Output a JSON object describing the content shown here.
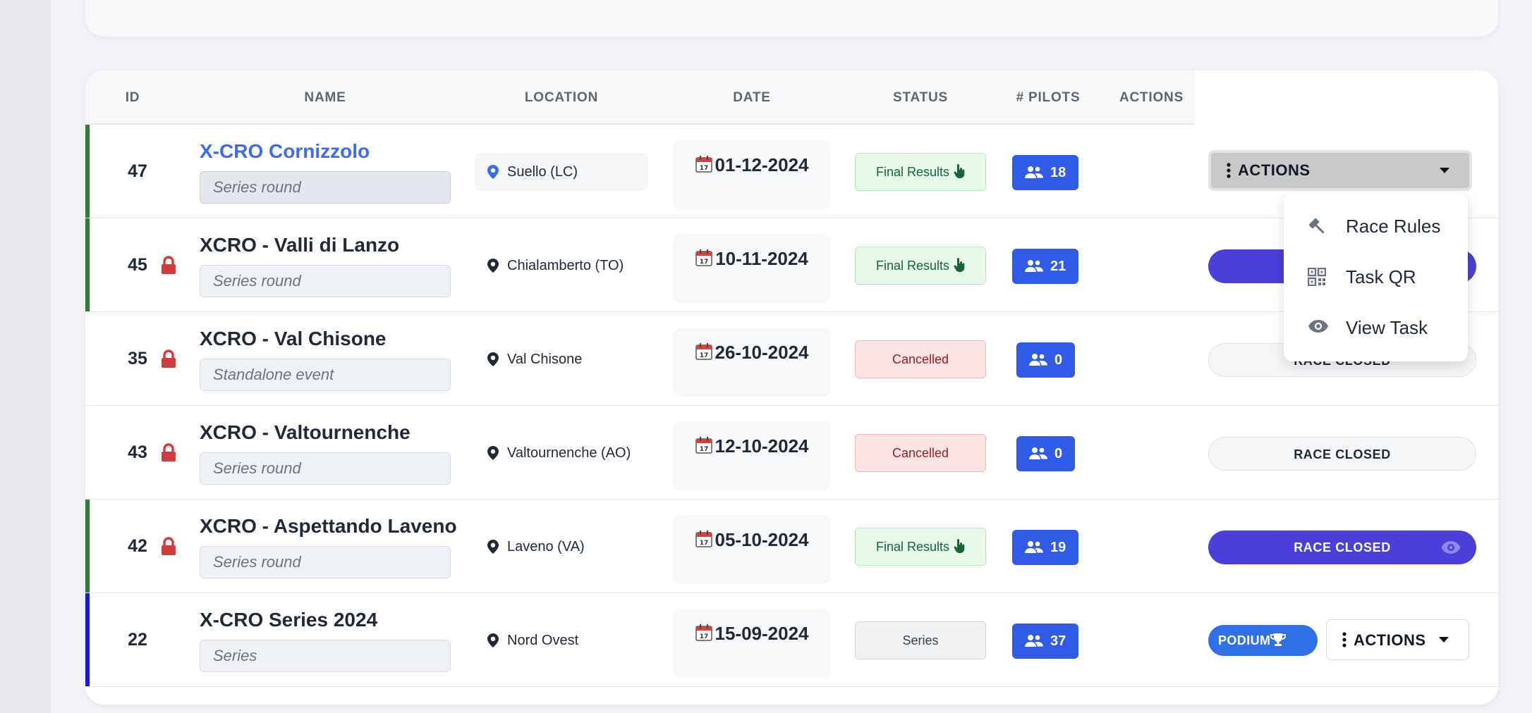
{
  "table": {
    "headers": {
      "id": "ID",
      "name": "NAME",
      "location": "LOCATION",
      "date": "DATE",
      "status": "STATUS",
      "pilots": "# PILOTS",
      "actions": "ACTIONS"
    },
    "rows": [
      {
        "id": "47",
        "name": "X-CRO Cornizzolo",
        "subtitle": "Series round",
        "location": "Suello (LC)",
        "date": "01-12-2024",
        "status": "Final Results",
        "pilots": "18",
        "action": "ACTIONS",
        "locked": false,
        "stripe_color": "#2f7d32"
      },
      {
        "id": "45",
        "name": "XCRO - Valli di Lanzo",
        "subtitle": "Series round",
        "location": "Chialamberto (TO)",
        "date": "10-11-2024",
        "status": "Final Results",
        "pilots": "21",
        "action": "",
        "locked": true,
        "stripe_color": "#2f7d32"
      },
      {
        "id": "35",
        "name": "XCRO - Val Chisone",
        "subtitle": "Standalone event",
        "location": "Val Chisone",
        "date": "26-10-2024",
        "status": "Cancelled",
        "pilots": "0",
        "action": "RACE CLOSED",
        "locked": true,
        "stripe_color": ""
      },
      {
        "id": "43",
        "name": "XCRO - Valtournenche",
        "subtitle": "Series round",
        "location": "Valtournenche (AO)",
        "date": "12-10-2024",
        "status": "Cancelled",
        "pilots": "0",
        "action": "RACE CLOSED",
        "locked": true,
        "stripe_color": ""
      },
      {
        "id": "42",
        "name": "XCRO - Aspettando Laveno",
        "subtitle": "Series round",
        "location": "Laveno (VA)",
        "date": "05-10-2024",
        "status": "Final Results",
        "pilots": "19",
        "action": "RACE CLOSED",
        "locked": true,
        "stripe_color": "#2f7d32"
      },
      {
        "id": "22",
        "name": "X-CRO Series 2024",
        "subtitle": "Series",
        "location": "Nord Ovest",
        "date": "15-09-2024",
        "status": "Series",
        "pilots": "37",
        "action": "ACTIONS",
        "podium": "PODIUM",
        "locked": false,
        "stripe_color": "#1616e6"
      }
    ]
  },
  "dropdown": {
    "items": [
      {
        "label": "Race Rules",
        "icon": "gavel-icon"
      },
      {
        "label": "Task QR",
        "icon": "qr-code-icon"
      },
      {
        "label": "View Task",
        "icon": "eye-icon"
      }
    ]
  },
  "colors": {
    "link": "#3b6cf0",
    "primary": "#2f5be6",
    "purple": "#4b3fd9",
    "success_stripe": "#2f7d32",
    "series_stripe": "#1616e6",
    "lock": "#d23b3b"
  }
}
